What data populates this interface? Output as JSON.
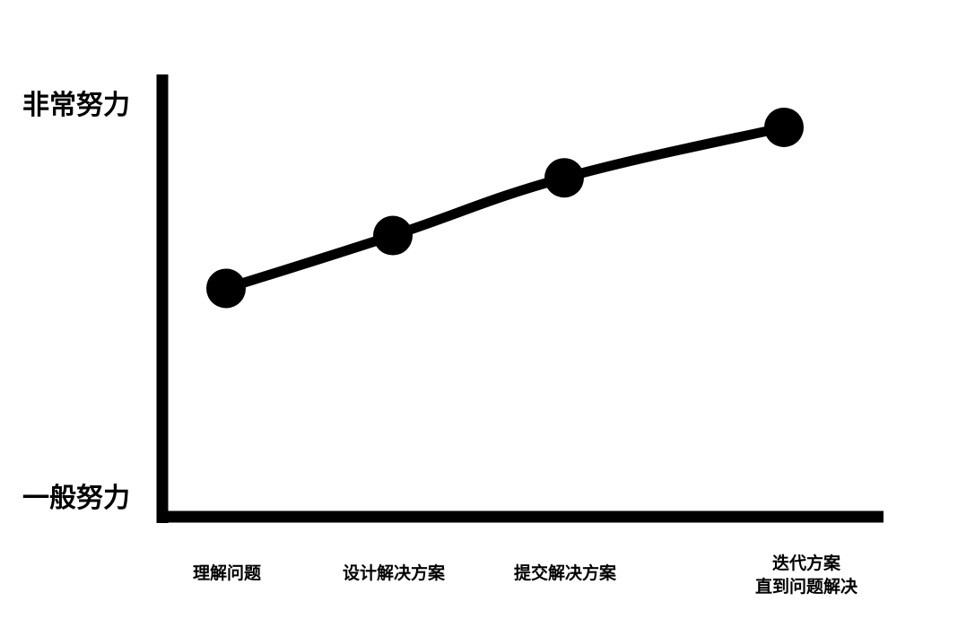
{
  "chart_data": {
    "type": "line",
    "title": "",
    "xlabel": "",
    "ylabel": "",
    "categories": [
      [
        "理解问题"
      ],
      [
        "设计解决方案"
      ],
      [
        "提交解决方案"
      ],
      [
        "迭代方案",
        "直到问题解决"
      ]
    ],
    "values": [
      0.45,
      0.67,
      0.91,
      1.12
    ],
    "ylim": [
      -0.5,
      1.34
    ],
    "y_tick_labels": {
      "bottom": "一般努力",
      "top": "非常努力"
    },
    "grid": false,
    "colors": {
      "line": "#000000",
      "marker": "#000000",
      "axis": "#000000",
      "background": "#ffffff"
    }
  }
}
